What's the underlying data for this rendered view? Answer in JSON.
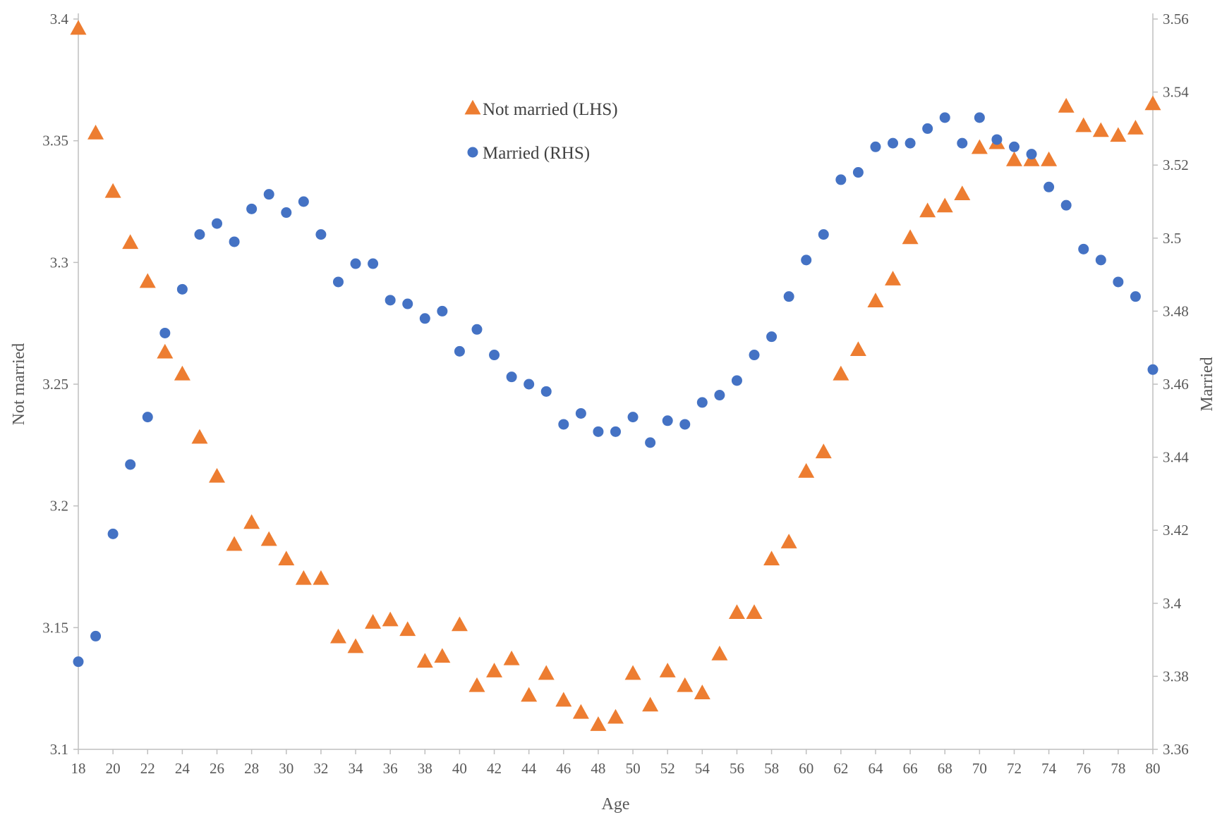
{
  "chart_data": {
    "type": "scatter",
    "title": "",
    "xlabel": "Age",
    "ylabel_left": "Not married",
    "ylabel_right": "Married",
    "x_range": [
      18,
      80
    ],
    "x_ticks": [
      18,
      20,
      22,
      24,
      26,
      28,
      30,
      32,
      34,
      36,
      38,
      40,
      42,
      44,
      46,
      48,
      50,
      52,
      54,
      56,
      58,
      60,
      62,
      64,
      66,
      68,
      70,
      72,
      74,
      76,
      78,
      80
    ],
    "ylim_left": [
      3.1,
      3.4
    ],
    "yticks_left": [
      "3.1",
      "3.15",
      "3.2",
      "3.25",
      "3.3",
      "3.35",
      "3.4"
    ],
    "ylim_right": [
      3.36,
      3.56
    ],
    "yticks_right": [
      "3.36",
      "3.38",
      "3.4",
      "3.42",
      "3.44",
      "3.46",
      "3.48",
      "3.5",
      "3.52",
      "3.54",
      "3.56"
    ],
    "grid": false,
    "legend_position": "top-center",
    "series": [
      {
        "name": "Not married (LHS)",
        "axis": "left",
        "marker": "triangle",
        "color": "#ED7D31",
        "x": [
          18,
          19,
          20,
          21,
          22,
          23,
          24,
          25,
          26,
          27,
          28,
          29,
          30,
          31,
          32,
          33,
          34,
          35,
          36,
          37,
          38,
          39,
          40,
          41,
          42,
          43,
          44,
          45,
          46,
          47,
          48,
          49,
          50,
          51,
          52,
          53,
          54,
          55,
          56,
          57,
          58,
          59,
          60,
          61,
          62,
          63,
          64,
          65,
          66,
          67,
          68,
          69,
          70,
          71,
          72,
          73,
          74,
          75,
          76,
          77,
          78,
          79,
          80
        ],
        "y": [
          3.396,
          3.353,
          3.329,
          3.308,
          3.292,
          3.263,
          3.254,
          3.228,
          3.212,
          3.184,
          3.193,
          3.186,
          3.178,
          3.17,
          3.17,
          3.146,
          3.142,
          3.152,
          3.153,
          3.149,
          3.136,
          3.138,
          3.151,
          3.126,
          3.132,
          3.137,
          3.122,
          3.131,
          3.12,
          3.115,
          3.11,
          3.113,
          3.131,
          3.118,
          3.132,
          3.126,
          3.123,
          3.139,
          3.156,
          3.156,
          3.178,
          3.185,
          3.214,
          3.222,
          3.254,
          3.264,
          3.284,
          3.293,
          3.31,
          3.321,
          3.323,
          3.328,
          3.347,
          3.349,
          3.342,
          3.342,
          3.342,
          3.364,
          3.356,
          3.354,
          3.352,
          3.355,
          3.365
        ]
      },
      {
        "name": "Married (RHS)",
        "axis": "right",
        "marker": "circle",
        "color": "#4472C4",
        "x": [
          18,
          19,
          20,
          21,
          22,
          23,
          24,
          25,
          26,
          27,
          28,
          29,
          30,
          31,
          32,
          33,
          34,
          35,
          36,
          37,
          38,
          39,
          40,
          41,
          42,
          43,
          44,
          45,
          46,
          47,
          48,
          49,
          50,
          51,
          52,
          53,
          54,
          55,
          56,
          57,
          58,
          59,
          60,
          61,
          62,
          63,
          64,
          65,
          66,
          67,
          68,
          69,
          70,
          71,
          72,
          73,
          74,
          75,
          76,
          77,
          78,
          79,
          80
        ],
        "y": [
          3.384,
          3.391,
          3.419,
          3.438,
          3.451,
          3.474,
          3.486,
          3.501,
          3.504,
          3.499,
          3.508,
          3.512,
          3.507,
          3.51,
          3.501,
          3.488,
          3.493,
          3.493,
          3.483,
          3.482,
          3.478,
          3.48,
          3.469,
          3.475,
          3.468,
          3.462,
          3.46,
          3.458,
          3.449,
          3.452,
          3.447,
          3.447,
          3.451,
          3.444,
          3.45,
          3.449,
          3.455,
          3.457,
          3.461,
          3.468,
          3.473,
          3.484,
          3.494,
          3.501,
          3.516,
          3.518,
          3.525,
          3.526,
          3.526,
          3.53,
          3.533,
          3.526,
          3.533,
          3.527,
          3.525,
          3.523,
          3.514,
          3.509,
          3.497,
          3.494,
          3.488,
          3.484,
          3.464
        ]
      }
    ]
  }
}
